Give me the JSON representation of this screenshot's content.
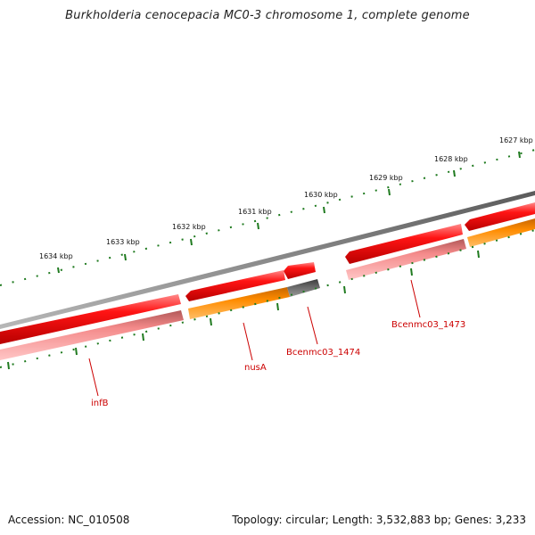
{
  "title": "Burkholderia cenocepacia MC0-3 chromosome 1, complete genome",
  "footer": {
    "accession": "Accession: NC_010508",
    "summary": "Topology: circular; Length: 3,532,883 bp; Genes: 3,233"
  },
  "scale": {
    "ticks": [
      "1634 kbp",
      "1633 kbp",
      "1632 kbp",
      "1631 kbp",
      "1630 kbp",
      "1629 kbp",
      "1628 kbp",
      "1627 kbp"
    ]
  },
  "genes": {
    "infB": "infB",
    "nusA": "nusA",
    "bcenmc03_1474": "Bcenmc03_1474",
    "bcenmc03_1473": "Bcenmc03_1473"
  },
  "colors": {
    "cds": "#ff0000",
    "gene": "#f4868a",
    "rna": "#ff8c00",
    "other": "#666666",
    "backbone": "#808080",
    "tick": "#1f7a1f",
    "label": "#cc0000"
  }
}
